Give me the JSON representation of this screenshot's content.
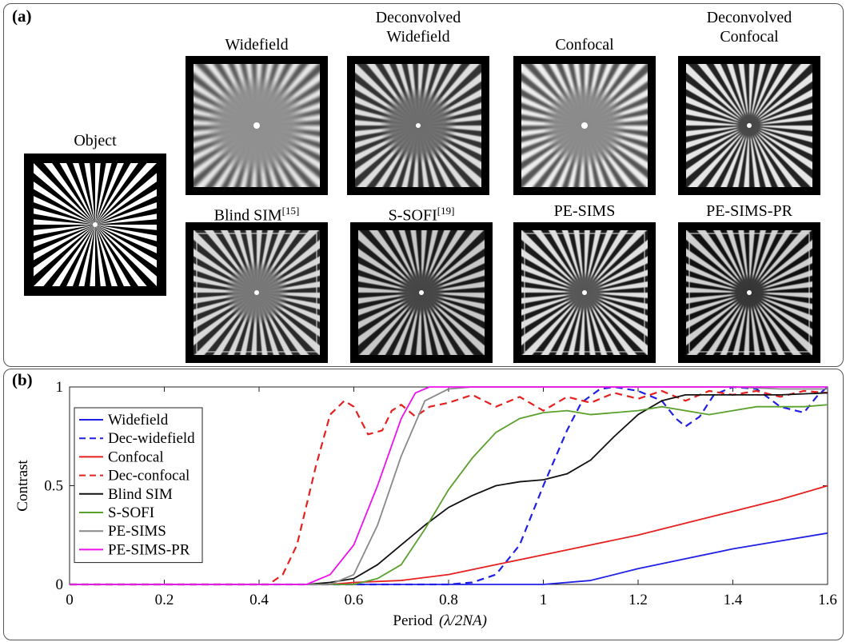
{
  "panel_a": {
    "label": "(a)",
    "tiles": [
      {
        "id": "object",
        "lines": [
          "Object"
        ]
      },
      {
        "id": "widefield",
        "lines": [
          "Widefield"
        ]
      },
      {
        "id": "dec-widefield",
        "lines": [
          "Deconvolved",
          "Widefield"
        ]
      },
      {
        "id": "confocal",
        "lines": [
          "Confocal"
        ]
      },
      {
        "id": "dec-confocal",
        "lines": [
          "Deconvolved",
          "Confocal"
        ]
      },
      {
        "id": "blind-sim",
        "lines": [
          "Blind SIM"
        ],
        "ref": "[15]"
      },
      {
        "id": "s-sofi",
        "lines": [
          "S-SOFI"
        ],
        "ref": "[19]"
      },
      {
        "id": "pe-sims",
        "lines": [
          "PE-SIMS"
        ]
      },
      {
        "id": "pe-sims-pr",
        "lines": [
          "PE-SIMS-PR"
        ]
      }
    ]
  },
  "panel_b": {
    "label": "(b)"
  },
  "chart_data": {
    "type": "line",
    "title": "",
    "xlabel": "Period",
    "xlabel_math": "(λ/2NA)",
    "ylabel": "Contrast",
    "xlim": [
      0,
      1.6
    ],
    "ylim": [
      0,
      1
    ],
    "xticks": [
      "0",
      "0.2",
      "0.4",
      "0.6",
      "0.8",
      "1",
      "1.2",
      "1.4",
      "1.6"
    ],
    "yticks": [
      "0",
      "0.5",
      "1"
    ],
    "legend_position": "top-left",
    "series": [
      {
        "name": "Widefield",
        "color": "#1f1fe6",
        "dash": false,
        "x": [
          0,
          0.9,
          1.0,
          1.1,
          1.2,
          1.3,
          1.4,
          1.5,
          1.6
        ],
        "y": [
          0,
          0,
          0,
          0.02,
          0.08,
          0.13,
          0.18,
          0.22,
          0.26
        ]
      },
      {
        "name": "Dec-widefield",
        "color": "#1f1fe6",
        "dash": true,
        "x": [
          0,
          0.8,
          0.85,
          0.9,
          0.95,
          1.0,
          1.05,
          1.08,
          1.12,
          1.15,
          1.2,
          1.25,
          1.28,
          1.3,
          1.33,
          1.36,
          1.4,
          1.45,
          1.5,
          1.55,
          1.58,
          1.6
        ],
        "y": [
          0,
          0,
          0.01,
          0.05,
          0.2,
          0.5,
          0.78,
          0.92,
          0.99,
          1.0,
          0.98,
          0.93,
          0.84,
          0.8,
          0.85,
          0.96,
          1.0,
          0.99,
          0.9,
          0.87,
          0.96,
          1.0
        ]
      },
      {
        "name": "Confocal",
        "color": "#e61f1f",
        "dash": false,
        "x": [
          0,
          0.55,
          0.6,
          0.7,
          0.8,
          0.9,
          1.0,
          1.1,
          1.2,
          1.3,
          1.4,
          1.5,
          1.6
        ],
        "y": [
          0,
          0,
          0.01,
          0.02,
          0.05,
          0.1,
          0.15,
          0.2,
          0.25,
          0.31,
          0.37,
          0.43,
          0.5
        ]
      },
      {
        "name": "Dec-confocal",
        "color": "#e61f1f",
        "dash": true,
        "x": [
          0,
          0.42,
          0.45,
          0.48,
          0.52,
          0.55,
          0.58,
          0.6,
          0.63,
          0.66,
          0.68,
          0.7,
          0.73,
          0.76,
          0.8,
          0.85,
          0.9,
          0.95,
          1.0,
          1.05,
          1.1,
          1.15,
          1.2,
          1.25,
          1.3,
          1.35,
          1.4,
          1.45,
          1.5,
          1.55,
          1.6
        ],
        "y": [
          0,
          0,
          0.05,
          0.2,
          0.6,
          0.86,
          0.93,
          0.9,
          0.76,
          0.78,
          0.88,
          0.91,
          0.85,
          0.9,
          0.92,
          0.96,
          0.9,
          0.95,
          0.88,
          0.95,
          0.92,
          0.97,
          0.94,
          0.98,
          0.93,
          0.98,
          0.96,
          0.98,
          0.95,
          0.98,
          0.97
        ]
      },
      {
        "name": "Blind SIM",
        "color": "#111111",
        "dash": false,
        "x": [
          0,
          0.5,
          0.55,
          0.6,
          0.65,
          0.7,
          0.75,
          0.8,
          0.85,
          0.9,
          0.95,
          1.0,
          1.05,
          1.1,
          1.15,
          1.2,
          1.25,
          1.3,
          1.35,
          1.4,
          1.5,
          1.6
        ],
        "y": [
          0,
          0,
          0.01,
          0.03,
          0.1,
          0.2,
          0.3,
          0.39,
          0.45,
          0.5,
          0.52,
          0.53,
          0.56,
          0.63,
          0.75,
          0.86,
          0.93,
          0.96,
          0.96,
          0.96,
          0.96,
          0.97
        ]
      },
      {
        "name": "S-SOFI",
        "color": "#5aa02c",
        "dash": false,
        "x": [
          0,
          0.6,
          0.65,
          0.7,
          0.75,
          0.8,
          0.85,
          0.9,
          0.95,
          1.0,
          1.05,
          1.1,
          1.15,
          1.2,
          1.25,
          1.3,
          1.35,
          1.4,
          1.45,
          1.5,
          1.55,
          1.6
        ],
        "y": [
          0,
          0,
          0.03,
          0.1,
          0.28,
          0.48,
          0.64,
          0.77,
          0.84,
          0.87,
          0.88,
          0.86,
          0.87,
          0.88,
          0.9,
          0.88,
          0.86,
          0.88,
          0.9,
          0.9,
          0.9,
          0.91
        ]
      },
      {
        "name": "PE-SIMS",
        "color": "#888888",
        "dash": false,
        "x": [
          0,
          0.55,
          0.6,
          0.65,
          0.7,
          0.75,
          0.8,
          0.85,
          0.9,
          1.0,
          1.1,
          1.2,
          1.3,
          1.4,
          1.5,
          1.6
        ],
        "y": [
          0,
          0,
          0.05,
          0.3,
          0.65,
          0.93,
          0.99,
          1.0,
          1.0,
          1.0,
          1.0,
          1.0,
          1.0,
          1.0,
          0.99,
          0.99
        ]
      },
      {
        "name": "PE-SIMS-PR",
        "color": "#ee11ee",
        "dash": false,
        "x": [
          0,
          0.5,
          0.55,
          0.6,
          0.65,
          0.7,
          0.73,
          0.76,
          0.8,
          1.0,
          1.2,
          1.4,
          1.6
        ],
        "y": [
          0,
          0,
          0.05,
          0.2,
          0.5,
          0.84,
          0.97,
          1.0,
          1.0,
          1.0,
          1.0,
          1.0,
          1.0
        ]
      }
    ]
  }
}
